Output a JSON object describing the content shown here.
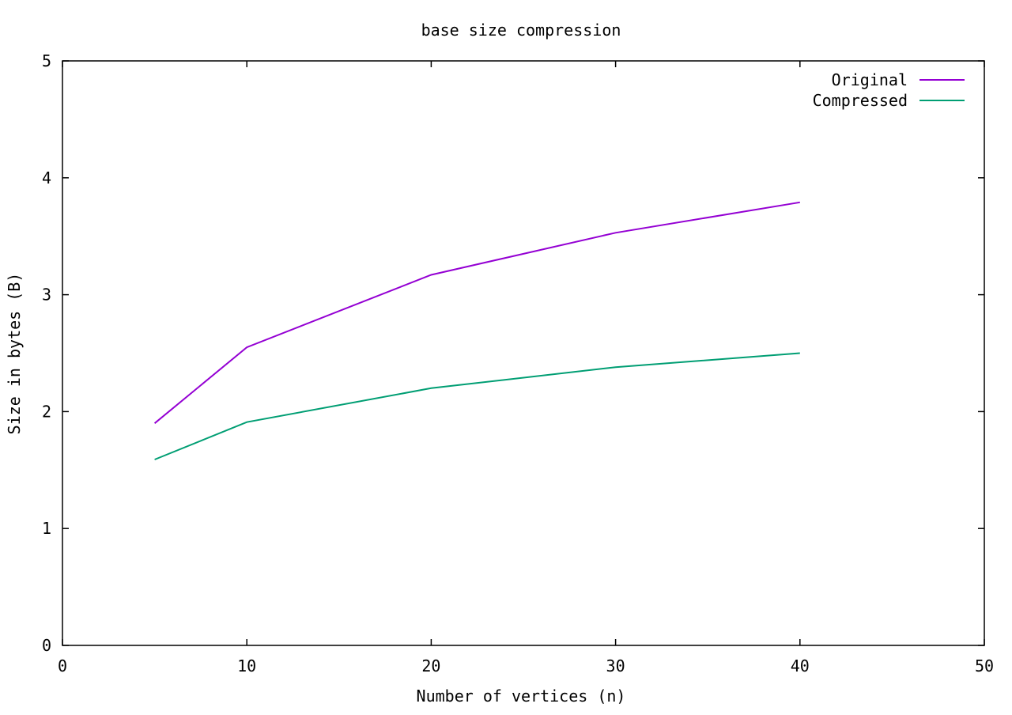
{
  "chart_data": {
    "type": "line",
    "title": "base size compression",
    "xlabel": "Number of vertices (n)",
    "ylabel": "Size in bytes (B)",
    "xlim": [
      0,
      50
    ],
    "ylim": [
      0,
      5
    ],
    "xticks": [
      "0",
      "10",
      "20",
      "30",
      "40",
      "50"
    ],
    "yticks": [
      "0",
      "1",
      "2",
      "3",
      "4",
      "5"
    ],
    "grid": false,
    "legend_position": "top-right",
    "x": [
      5,
      10,
      20,
      30,
      40
    ],
    "series": [
      {
        "name": "Original",
        "color": "#9400d3",
        "values": [
          1.9,
          2.55,
          3.17,
          3.53,
          3.79
        ]
      },
      {
        "name": "Compressed",
        "color": "#009e73",
        "values": [
          1.59,
          1.91,
          2.2,
          2.38,
          2.5
        ]
      }
    ]
  }
}
